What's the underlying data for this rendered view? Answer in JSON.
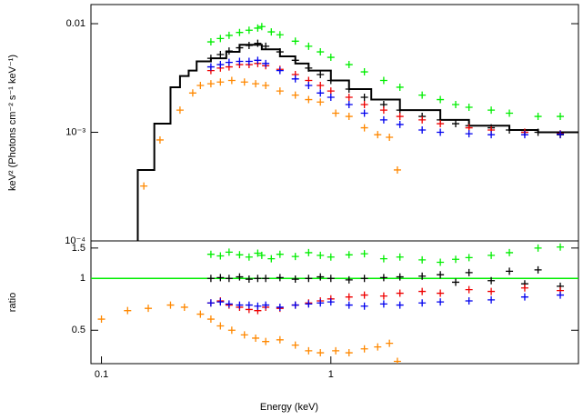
{
  "chart_data": [
    {
      "type": "scatter",
      "y_label": "keV² (Photons cm⁻² s⁻¹ keV⁻¹)",
      "xlog": true,
      "ylog": true,
      "xlim": [
        0.09,
        12
      ],
      "ylim": [
        0.0001,
        0.015
      ],
      "yticks": [
        {
          "value": 0.01,
          "label": "0.01"
        },
        {
          "value": 0.001,
          "label": "10⁻³"
        },
        {
          "value": 0.0001,
          "label": "10⁻⁴"
        }
      ],
      "series": [
        {
          "type": "step",
          "color": "#000000",
          "x": [
            0.144,
            0.17,
            0.2,
            0.22,
            0.24,
            0.26,
            0.3,
            0.35,
            0.4,
            0.5,
            0.6,
            0.7,
            0.8,
            1,
            1.2,
            1.5,
            2,
            3,
            4,
            6,
            8,
            12
          ],
          "values": [
            0.00045,
            0.0012,
            0.0026,
            0.0033,
            0.0037,
            0.0045,
            0.0048,
            0.0055,
            0.0064,
            0.0058,
            0.005,
            0.0043,
            0.0037,
            0.003,
            0.0025,
            0.002,
            0.0016,
            0.0013,
            0.00115,
            0.00105,
            0.001,
            0.001
          ]
        },
        {
          "color": "#00ee00",
          "x": [
            0.3,
            0.33,
            0.36,
            0.4,
            0.44,
            0.48,
            0.5,
            0.55,
            0.6,
            0.7,
            0.8,
            0.9,
            1,
            1.2,
            1.4,
            1.7,
            2,
            2.5,
            3,
            3.5,
            4,
            5,
            6,
            8,
            10
          ],
          "values": [
            0.0068,
            0.0073,
            0.0078,
            0.0083,
            0.0087,
            0.0091,
            0.0094,
            0.0084,
            0.0079,
            0.0069,
            0.0062,
            0.0055,
            0.0049,
            0.0042,
            0.0036,
            0.003,
            0.0026,
            0.0022,
            0.002,
            0.0018,
            0.0017,
            0.0016,
            0.0015,
            0.0014,
            0.0014
          ]
        },
        {
          "color": "#000000",
          "x": [
            0.3,
            0.33,
            0.36,
            0.4,
            0.44,
            0.48,
            0.52,
            0.6,
            0.7,
            0.8,
            0.9,
            1,
            1.2,
            1.4,
            1.7,
            2,
            2.5,
            3,
            3.5,
            4,
            5,
            6,
            7,
            8,
            10
          ],
          "values": [
            0.0048,
            0.0052,
            0.0056,
            0.006,
            0.0063,
            0.0066,
            0.0062,
            0.0055,
            0.0046,
            0.0039,
            0.0034,
            0.003,
            0.0025,
            0.0021,
            0.0018,
            0.0016,
            0.0014,
            0.0013,
            0.0012,
            0.00115,
            0.0011,
            0.00105,
            0.001,
            0.001,
            0.00095
          ]
        },
        {
          "color": "#ee0000",
          "x": [
            0.3,
            0.33,
            0.36,
            0.4,
            0.44,
            0.48,
            0.52,
            0.6,
            0.7,
            0.8,
            0.9,
            1,
            1.2,
            1.4,
            1.7,
            2,
            2.5,
            3,
            4,
            5,
            7,
            10
          ],
          "values": [
            0.0037,
            0.0039,
            0.004,
            0.0042,
            0.0042,
            0.0043,
            0.0041,
            0.0038,
            0.0034,
            0.003,
            0.0027,
            0.0024,
            0.0021,
            0.0018,
            0.0016,
            0.0014,
            0.0013,
            0.0012,
            0.0011,
            0.00105,
            0.001,
            0.00097
          ]
        },
        {
          "color": "#0000ee",
          "x": [
            0.3,
            0.33,
            0.36,
            0.4,
            0.44,
            0.48,
            0.52,
            0.6,
            0.7,
            0.8,
            0.9,
            1,
            1.2,
            1.4,
            1.7,
            2,
            2.5,
            3,
            4,
            5,
            7,
            10
          ],
          "values": [
            0.004,
            0.0042,
            0.0044,
            0.0045,
            0.0045,
            0.0046,
            0.0043,
            0.0037,
            0.0031,
            0.0027,
            0.0023,
            0.0021,
            0.0018,
            0.0015,
            0.0013,
            0.00118,
            0.00105,
            0.001,
            0.00097,
            0.00095,
            0.00095,
            0.00096
          ]
        },
        {
          "color": "#ff8800",
          "x": [
            0.153,
            0.18,
            0.22,
            0.25,
            0.27,
            0.3,
            0.33,
            0.37,
            0.42,
            0.47,
            0.52,
            0.6,
            0.7,
            0.8,
            0.9,
            1.05,
            1.2,
            1.4,
            1.6,
            1.8,
            1.95
          ],
          "values": [
            0.00032,
            0.00085,
            0.0016,
            0.0023,
            0.0027,
            0.0028,
            0.0029,
            0.003,
            0.0029,
            0.0028,
            0.0027,
            0.0024,
            0.0022,
            0.002,
            0.0019,
            0.0015,
            0.0014,
            0.0011,
            0.00095,
            0.0009,
            0.00045
          ]
        }
      ]
    },
    {
      "type": "scatter",
      "y_label": "ratio",
      "x_label": "Energy (keV)",
      "xlog": true,
      "ylog": true,
      "xlim": [
        0.09,
        12
      ],
      "ylim": [
        0.32,
        1.65
      ],
      "xticks": [
        0.1,
        1
      ],
      "yticks": [
        0.5,
        1,
        1.5
      ],
      "series": [
        {
          "type": "line",
          "color": "#00ee00",
          "x": [
            0.09,
            12
          ],
          "values": [
            1,
            1
          ]
        },
        {
          "color": "#00ee00",
          "x": [
            0.3,
            0.33,
            0.36,
            0.4,
            0.44,
            0.48,
            0.5,
            0.55,
            0.6,
            0.7,
            0.8,
            0.9,
            1,
            1.2,
            1.4,
            1.7,
            2,
            2.5,
            3,
            3.5,
            4,
            5,
            6,
            8,
            10
          ],
          "values": [
            1.38,
            1.35,
            1.42,
            1.37,
            1.33,
            1.4,
            1.36,
            1.3,
            1.38,
            1.34,
            1.41,
            1.36,
            1.33,
            1.37,
            1.39,
            1.3,
            1.33,
            1.28,
            1.24,
            1.29,
            1.32,
            1.36,
            1.41,
            1.5,
            1.52
          ]
        },
        {
          "color": "#000000",
          "x": [
            0.3,
            0.33,
            0.36,
            0.4,
            0.44,
            0.48,
            0.52,
            0.6,
            0.7,
            0.8,
            0.9,
            1,
            1.2,
            1.4,
            1.7,
            2,
            2.5,
            3,
            3.5,
            4,
            5,
            6,
            7,
            8,
            10
          ],
          "values": [
            1.0,
            1.01,
            1.0,
            1.02,
            0.99,
            1.0,
            1.0,
            1.01,
            0.99,
            1.0,
            1.02,
            1.0,
            0.98,
            1.0,
            1.01,
            1.02,
            1.03,
            1.05,
            0.95,
            1.08,
            0.97,
            1.1,
            0.93,
            1.12,
            0.9
          ]
        },
        {
          "color": "#ee0000",
          "x": [
            0.3,
            0.33,
            0.36,
            0.4,
            0.44,
            0.48,
            0.52,
            0.6,
            0.7,
            0.8,
            0.9,
            1,
            1.2,
            1.4,
            1.7,
            2,
            2.5,
            3,
            4,
            5,
            7,
            10
          ],
          "values": [
            0.72,
            0.74,
            0.7,
            0.68,
            0.66,
            0.65,
            0.68,
            0.67,
            0.7,
            0.72,
            0.74,
            0.76,
            0.78,
            0.8,
            0.79,
            0.82,
            0.84,
            0.82,
            0.86,
            0.84,
            0.88,
            0.85
          ]
        },
        {
          "color": "#0000ee",
          "x": [
            0.3,
            0.33,
            0.36,
            0.4,
            0.44,
            0.48,
            0.52,
            0.6,
            0.7,
            0.8,
            0.9,
            1,
            1.2,
            1.4,
            1.7,
            2,
            2.5,
            3,
            4,
            5,
            7,
            10
          ],
          "values": [
            0.72,
            0.73,
            0.71,
            0.7,
            0.7,
            0.69,
            0.7,
            0.68,
            0.7,
            0.71,
            0.72,
            0.73,
            0.7,
            0.69,
            0.71,
            0.7,
            0.72,
            0.73,
            0.74,
            0.75,
            0.78,
            0.8
          ]
        },
        {
          "color": "#ff8800",
          "x": [
            0.1,
            0.13,
            0.16,
            0.2,
            0.23,
            0.27,
            0.3,
            0.33,
            0.37,
            0.42,
            0.47,
            0.52,
            0.6,
            0.7,
            0.8,
            0.9,
            1.05,
            1.2,
            1.4,
            1.6,
            1.8,
            1.95
          ],
          "values": [
            0.58,
            0.65,
            0.67,
            0.7,
            0.68,
            0.62,
            0.58,
            0.53,
            0.5,
            0.47,
            0.45,
            0.43,
            0.44,
            0.41,
            0.38,
            0.37,
            0.38,
            0.37,
            0.39,
            0.4,
            0.42,
            0.33
          ]
        }
      ]
    }
  ]
}
